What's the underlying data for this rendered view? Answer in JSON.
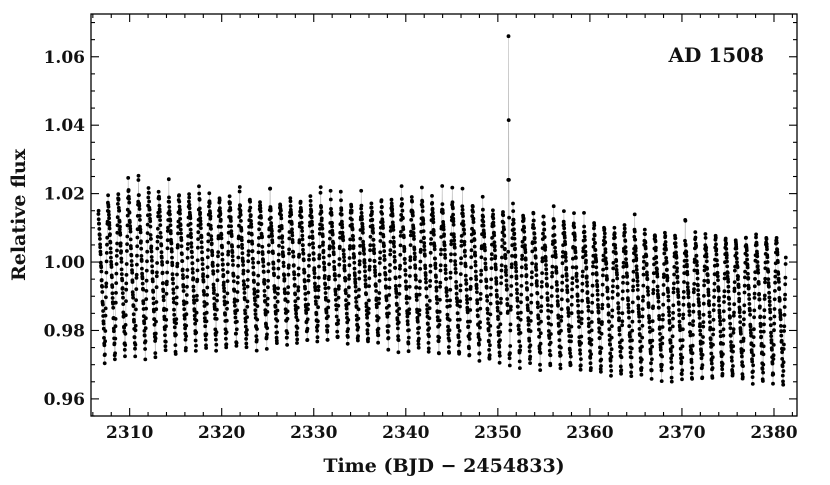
{
  "chart_data": {
    "type": "scatter",
    "title": "",
    "xlabel": "Time (BJD − 2454833)",
    "ylabel": "Relative flux",
    "annotation": "AD 1508",
    "xlim": [
      2305.8,
      2382.5
    ],
    "ylim": [
      0.955,
      1.0725
    ],
    "xticks": [
      2310,
      2320,
      2330,
      2340,
      2350,
      2360,
      2370,
      2380
    ],
    "yticks": [
      0.96,
      0.98,
      1.0,
      1.02,
      1.04,
      1.06
    ],
    "ytick_labels": [
      "0.96",
      "0.98",
      "1.00",
      "1.02",
      "1.04",
      "1.06"
    ],
    "grid": false,
    "legend": "none",
    "marker_color": "#000000",
    "line_color": "#bbbbbb",
    "series": [
      {
        "start": 2306.6,
        "end": 2381.3,
        "cadence_days": 0.0204,
        "pulsation_period_days": 1.1,
        "pulsation_phase_zero": 2306.2,
        "rise_fraction": 0.32,
        "maximum_flux_envelope": {
          "x": [
            2306,
            2310,
            2315,
            2320,
            2325,
            2330,
            2335,
            2340,
            2345,
            2350,
            2355,
            2360,
            2365,
            2370,
            2375,
            2381
          ],
          "y": [
            1.017,
            1.022,
            1.02,
            1.019,
            1.018,
            1.018,
            1.017,
            1.019,
            1.018,
            1.015,
            1.014,
            1.011,
            1.01,
            1.008,
            1.007,
            1.008
          ]
        },
        "minimum_flux_envelope": {
          "x": [
            2306,
            2310,
            2315,
            2320,
            2325,
            2330,
            2335,
            2340,
            2345,
            2350,
            2355,
            2360,
            2365,
            2370,
            2375,
            2381
          ],
          "y": [
            0.97,
            0.971,
            0.973,
            0.974,
            0.975,
            0.976,
            0.976,
            0.974,
            0.972,
            0.97,
            0.969,
            0.967,
            0.966,
            0.965,
            0.965,
            0.964
          ]
        },
        "flare_points": [
          {
            "x": 2351.12,
            "y": 1.003
          },
          {
            "x": 2351.14,
            "y": 1.024
          },
          {
            "x": 2351.16,
            "y": 1.066
          },
          {
            "x": 2351.18,
            "y": 1.0415
          },
          {
            "x": 2351.2,
            "y": 1.024
          },
          {
            "x": 2351.22,
            "y": 1.013
          }
        ]
      }
    ]
  }
}
